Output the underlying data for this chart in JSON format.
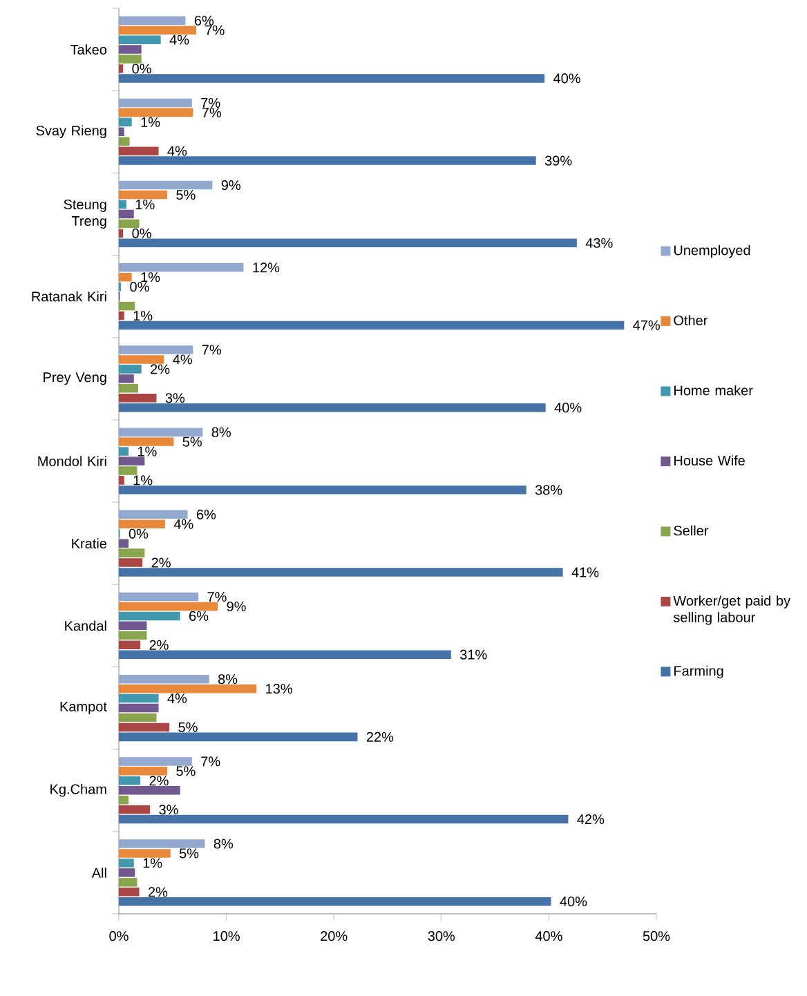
{
  "chart_data": {
    "type": "bar",
    "orientation": "horizontal",
    "grid": false,
    "legend": "right",
    "categories": [
      "Takeo",
      "Svay Rieng",
      "Steung Treng",
      "Ratanak Kiri",
      "Prey Veng",
      "Mondol Kiri",
      "Kratie",
      "Kandal",
      "Kampot",
      "Kg.Cham",
      "All"
    ],
    "series": [
      {
        "name": "Unemployed",
        "color": "#93a9cf",
        "values": [
          6.2,
          6.8,
          8.7,
          11.6,
          6.9,
          7.8,
          6.4,
          7.4,
          8.4,
          6.8,
          8.0
        ],
        "value_labels": [
          "6%",
          "7%",
          "9%",
          "12%",
          "7%",
          "8%",
          "6%",
          "7%",
          "8%",
          "7%",
          "8%"
        ]
      },
      {
        "name": "Other",
        "color": "#e8883a",
        "values": [
          7.2,
          6.9,
          4.5,
          1.2,
          4.2,
          5.1,
          4.3,
          9.2,
          12.8,
          4.5,
          4.8
        ],
        "value_labels": [
          "7%",
          "7%",
          "5%",
          "1%",
          "4%",
          "5%",
          "4%",
          "9%",
          "13%",
          "5%",
          "5%"
        ]
      },
      {
        "name": "Home maker",
        "color": "#4198af",
        "values": [
          3.9,
          1.2,
          0.7,
          0.2,
          2.1,
          0.9,
          0.1,
          5.7,
          3.7,
          2.0,
          1.4
        ],
        "value_labels": [
          "4%",
          "1%",
          "1%",
          "0%",
          "2%",
          "1%",
          "0%",
          "6%",
          "4%",
          "2%",
          "1%"
        ]
      },
      {
        "name": "House Wife",
        "color": "#71588f",
        "values": [
          2.1,
          0.5,
          1.4,
          0.1,
          1.4,
          2.4,
          0.9,
          2.6,
          3.7,
          5.7,
          1.5
        ],
        "value_labels": [
          null,
          null,
          null,
          null,
          null,
          null,
          null,
          null,
          null,
          null,
          null
        ]
      },
      {
        "name": "Seller",
        "color": "#89a54e",
        "values": [
          2.1,
          1.0,
          1.9,
          1.5,
          1.8,
          1.7,
          2.4,
          2.6,
          3.5,
          0.9,
          1.7
        ],
        "value_labels": [
          null,
          null,
          null,
          null,
          null,
          null,
          null,
          null,
          null,
          null,
          null
        ]
      },
      {
        "name": "Worker/get paid by selling labour",
        "color": "#aa4643",
        "values": [
          0.4,
          3.7,
          0.4,
          0.5,
          3.5,
          0.5,
          2.2,
          2.0,
          4.7,
          2.9,
          1.9
        ],
        "value_labels": [
          "0%",
          "4%",
          "0%",
          "1%",
          "3%",
          "1%",
          "2%",
          "2%",
          "5%",
          "3%",
          "2%"
        ]
      },
      {
        "name": "Farming",
        "color": "#4572a7",
        "values": [
          39.6,
          38.8,
          42.6,
          47.0,
          39.7,
          37.9,
          41.3,
          30.9,
          22.2,
          41.8,
          40.2
        ],
        "value_labels": [
          "40%",
          "39%",
          "43%",
          "47%",
          "40%",
          "38%",
          "41%",
          "31%",
          "22%",
          "42%",
          "40%"
        ]
      }
    ],
    "xlim": [
      0,
      50
    ],
    "xticks": [
      {
        "value": 0,
        "label": "0%"
      },
      {
        "value": 10,
        "label": "10%"
      },
      {
        "value": 20,
        "label": "20%"
      },
      {
        "value": 30,
        "label": "30%"
      },
      {
        "value": 40,
        "label": "40%"
      },
      {
        "value": 50,
        "label": "50%"
      }
    ]
  }
}
